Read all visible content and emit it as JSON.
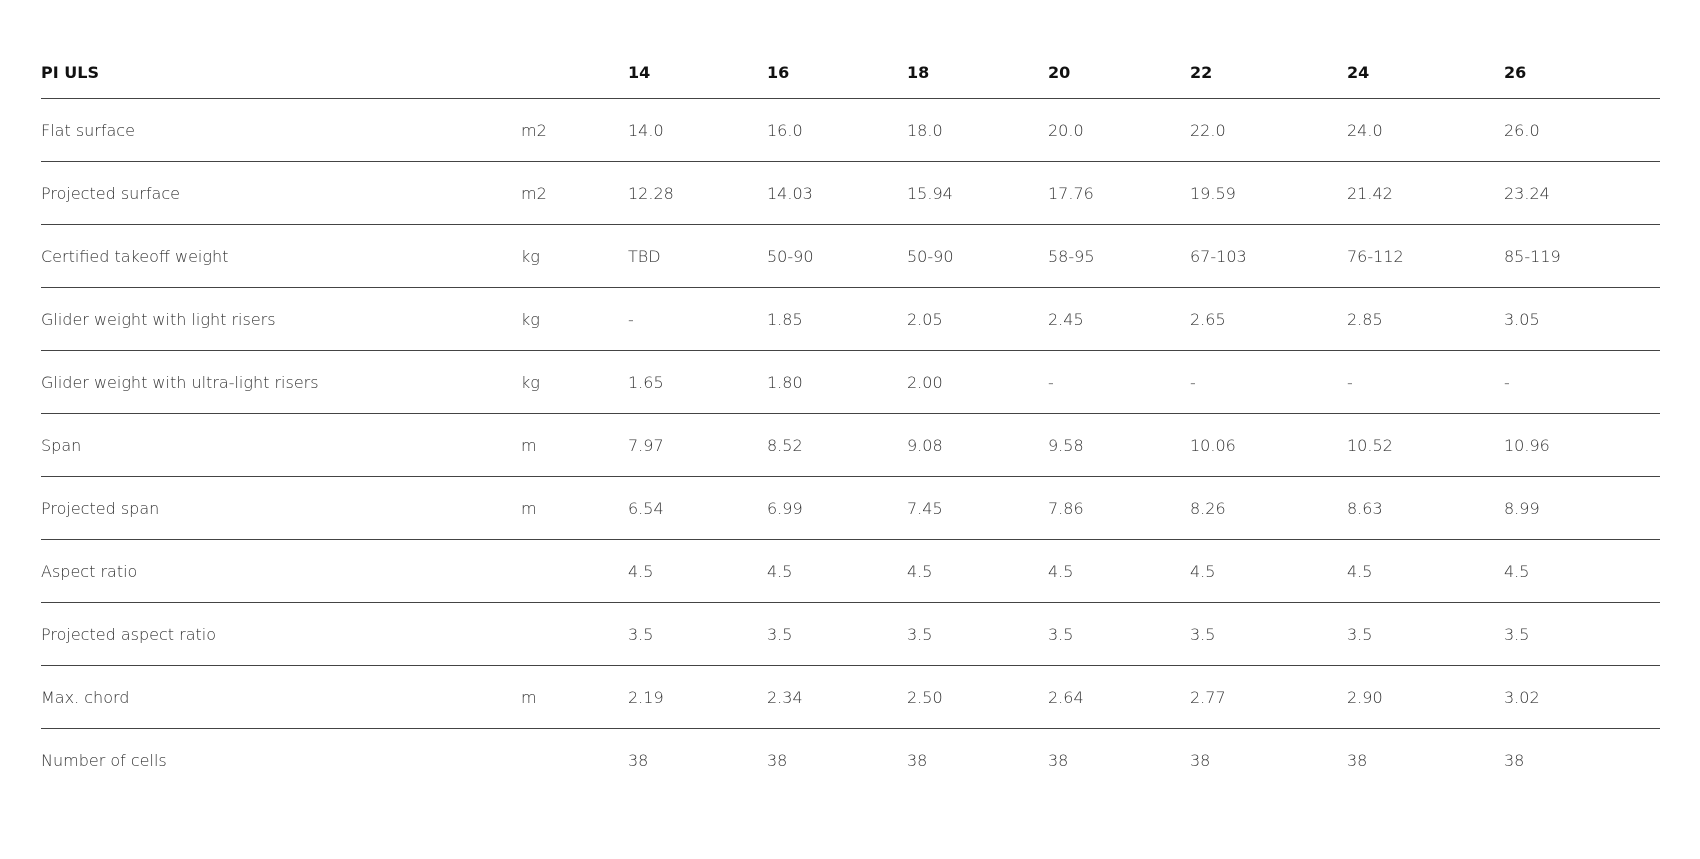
{
  "table": {
    "title": "PI ULS",
    "sizes": [
      "14",
      "16",
      "18",
      "20",
      "22",
      "24",
      "26"
    ],
    "rows": [
      {
        "label": "Flat surface",
        "unit": "m2",
        "values": [
          "14.0",
          "16.0",
          "18.0",
          "20.0",
          "22.0",
          "24.0",
          "26.0"
        ]
      },
      {
        "label": "Projected surface",
        "unit": "m2",
        "values": [
          "12.28",
          "14.03",
          "15.94",
          "17.76",
          "19.59",
          "21.42",
          "23.24"
        ]
      },
      {
        "label": "Certified takeoff weight",
        "unit": "kg",
        "values": [
          "TBD",
          "50-90",
          "50-90",
          "58-95",
          "67-103",
          "76-112",
          "85-119"
        ]
      },
      {
        "label": "Glider weight with light risers",
        "unit": "kg",
        "values": [
          "-",
          "1.85",
          "2.05",
          "2.45",
          "2.65",
          "2.85",
          "3.05"
        ]
      },
      {
        "label": "Glider weight with ultra-light risers",
        "unit": "kg",
        "values": [
          "1.65",
          "1.80",
          "2.00",
          "-",
          "-",
          "-",
          "-"
        ]
      },
      {
        "label": "Span",
        "unit": "m",
        "values": [
          "7.97",
          "8.52",
          "9.08",
          "9.58",
          "10.06",
          "10.52",
          "10.96"
        ]
      },
      {
        "label": "Projected span",
        "unit": "m",
        "values": [
          "6.54",
          "6.99",
          "7.45",
          "7.86",
          "8.26",
          "8.63",
          "8.99"
        ]
      },
      {
        "label": "Aspect ratio",
        "unit": "",
        "values": [
          "4.5",
          "4.5",
          "4.5",
          "4.5",
          "4.5",
          "4.5",
          "4.5"
        ]
      },
      {
        "label": "Projected aspect ratio",
        "unit": "",
        "values": [
          "3.5",
          "3.5",
          "3.5",
          "3.5",
          "3.5",
          "3.5",
          "3.5"
        ]
      },
      {
        "label": "Max. chord",
        "unit": "m",
        "values": [
          "2.19",
          "2.34",
          "2.50",
          "2.64",
          "2.77",
          "2.90",
          "3.02"
        ]
      },
      {
        "label": "Number of cells",
        "unit": "",
        "values": [
          "38",
          "38",
          "38",
          "38",
          "38",
          "38",
          "38"
        ]
      }
    ]
  }
}
